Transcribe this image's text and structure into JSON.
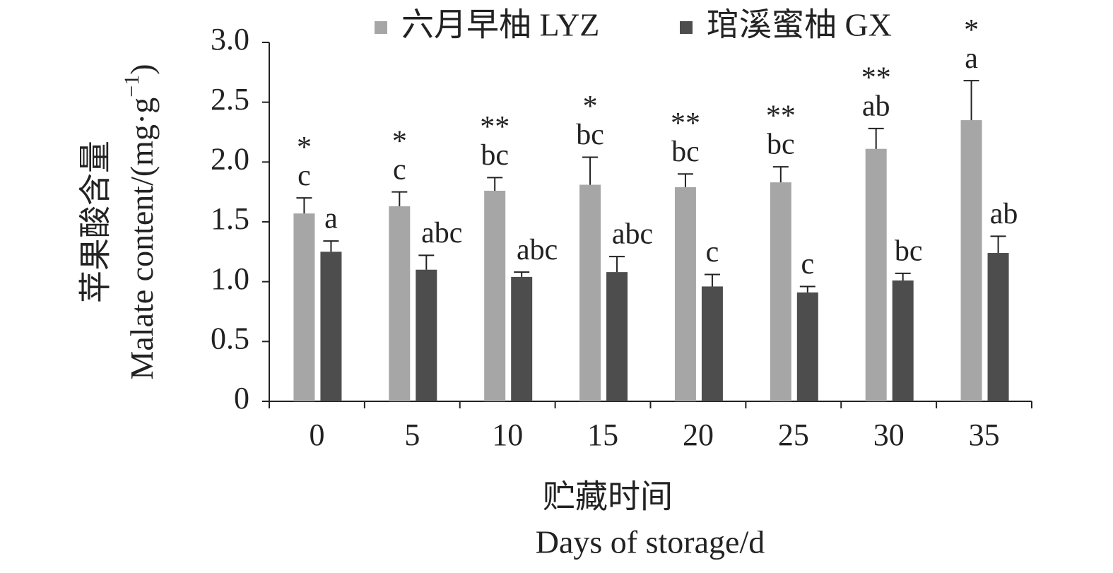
{
  "chart_data": {
    "type": "bar",
    "y_label": {
      "zh": "苹果酸含量",
      "en": "Malate content/(mg·g",
      "en_sup": "−1",
      "en_end": ")"
    },
    "x_label": {
      "zh": "贮藏时间",
      "en": "Days of storage/d"
    },
    "categories": [
      "0",
      "5",
      "10",
      "15",
      "20",
      "25",
      "30",
      "35"
    ],
    "series": [
      {
        "name": "六月早柚 LYZ",
        "color": "#a6a6a6",
        "values": [
          1.57,
          1.63,
          1.76,
          1.81,
          1.79,
          1.83,
          2.11,
          2.35
        ],
        "errors": [
          0.13,
          0.12,
          0.11,
          0.23,
          0.11,
          0.13,
          0.17,
          0.33
        ],
        "letters": [
          "c",
          "c",
          "bc",
          "bc",
          "bc",
          "bc",
          "ab",
          "a"
        ]
      },
      {
        "name": "琯溪蜜柚 GX",
        "color": "#4d4d4d",
        "values": [
          1.25,
          1.1,
          1.04,
          1.08,
          0.96,
          0.91,
          1.01,
          1.24
        ],
        "errors": [
          0.09,
          0.12,
          0.04,
          0.13,
          0.1,
          0.05,
          0.06,
          0.14
        ],
        "letters": [
          "a",
          "abc",
          "abc",
          "abc",
          "c",
          "c",
          "bc",
          "ab"
        ]
      }
    ],
    "significance": [
      "*",
      "*",
      "**",
      "*",
      "**",
      "**",
      "**",
      "*"
    ],
    "ylim": [
      0,
      3
    ],
    "yticks": [
      0,
      0.5,
      {
        "value": 1,
        "label": "1.0"
      },
      1.5,
      {
        "value": 2,
        "label": "2.0"
      },
      2.5,
      {
        "value": 3,
        "label": "3.0"
      }
    ],
    "grid": false,
    "legend": "top"
  }
}
